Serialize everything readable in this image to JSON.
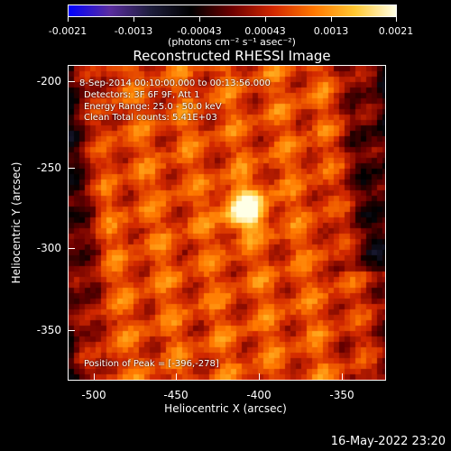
{
  "colorbar": {
    "ticks": [
      "-0.0021",
      "-0.0013",
      "-0.00043",
      "0.00043",
      "0.0013",
      "0.0021"
    ],
    "units": "(photons cm⁻² s⁻¹ asec⁻²)",
    "colors": [
      "#0000ff",
      "#5a2da0",
      "#1e1e3c",
      "#000000",
      "#6e0000",
      "#d22800",
      "#ff7800",
      "#ffc832",
      "#ffffe6"
    ]
  },
  "title": "Reconstructed RHESSI Image",
  "info": {
    "time_range": "8-Sep-2014 00:10:00.000 to 00:13:56.000",
    "detectors": "Detectors: 3F 6F 9F, Att 1",
    "energy": "Energy Range: 25.0 - 50.0 keV",
    "clean": "Clean    Total counts: 5.41E+03",
    "peak": "Position of Peak = [-396,-278]"
  },
  "axes": {
    "xlabel": "Heliocentric X (arcsec)",
    "ylabel": "Heliocentric Y (arcsec)",
    "xticks": [
      "-500",
      "-450",
      "-400",
      "-350"
    ],
    "yticks": [
      "-200",
      "-250",
      "-300",
      "-350"
    ]
  },
  "timestamp": "16-May-2022 23:20"
}
